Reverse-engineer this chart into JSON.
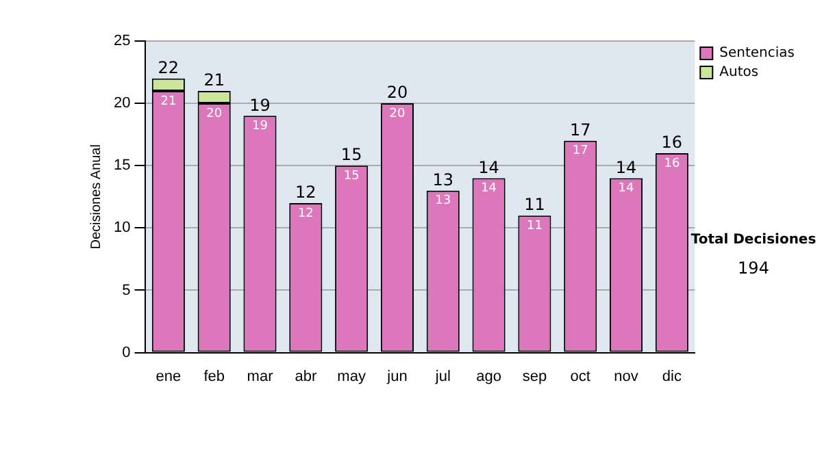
{
  "chart_data": {
    "type": "bar",
    "stacked": true,
    "ylabel": "Decisiones Anual",
    "categories": [
      "ene",
      "feb",
      "mar",
      "abr",
      "may",
      "jun",
      "jul",
      "ago",
      "sep",
      "oct",
      "nov",
      "dic"
    ],
    "series": [
      {
        "name": "Sentencias",
        "color": "#dd77bb",
        "values": [
          21,
          20,
          19,
          12,
          15,
          20,
          13,
          14,
          11,
          17,
          14,
          16
        ],
        "value_labels": [
          "21",
          "20",
          "19",
          "12",
          "15",
          "20",
          "13",
          "14",
          "11",
          "17",
          "14",
          "16"
        ]
      },
      {
        "name": "Autos",
        "color": "#cce699",
        "values": [
          1,
          1,
          0,
          0,
          0,
          0,
          0,
          0,
          0,
          0,
          0,
          0
        ]
      }
    ],
    "totals": [
      "22",
      "21",
      "19",
      "12",
      "15",
      "20",
      "13",
      "14",
      "11",
      "17",
      "14",
      "16"
    ],
    "ylim": [
      0,
      25
    ],
    "yticks": [
      0,
      5,
      10,
      15,
      20,
      25
    ],
    "grid": "y",
    "legend": "right",
    "annotations": [
      "Total Decisiones",
      "194"
    ]
  }
}
